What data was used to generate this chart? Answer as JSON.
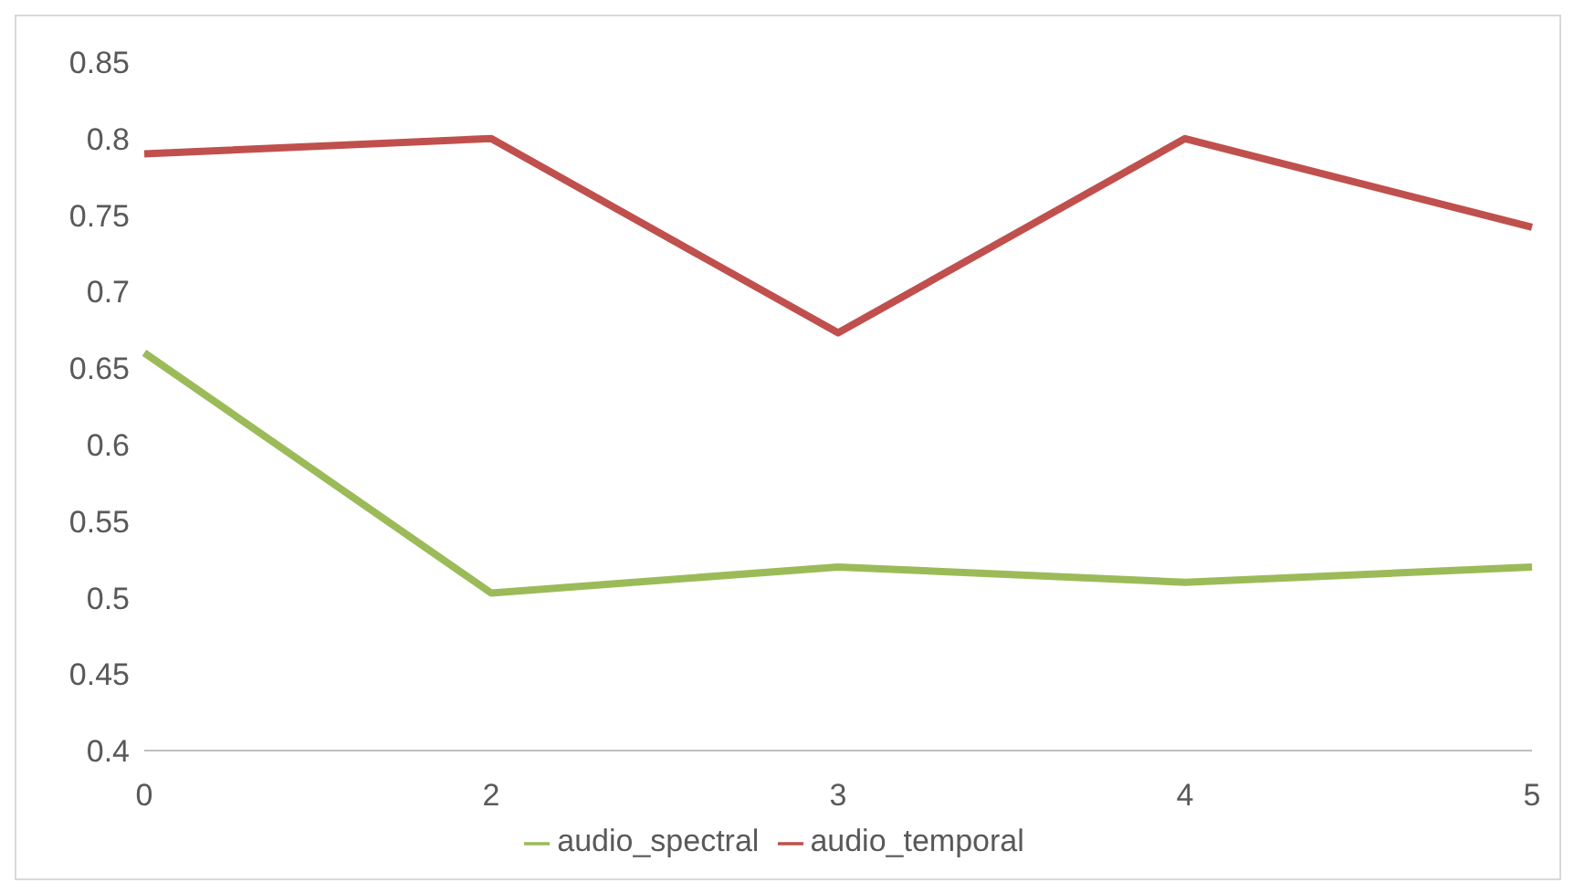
{
  "chart_data": {
    "type": "line",
    "categories": [
      "0",
      "2",
      "3",
      "4",
      "5"
    ],
    "series": [
      {
        "name": "audio_temporal",
        "color": "#c0504d",
        "values": [
          0.79,
          0.8,
          0.673,
          0.8,
          0.742
        ]
      },
      {
        "name": "audio_spectral",
        "color": "#9bbb59",
        "values": [
          0.66,
          0.503,
          0.52,
          0.51,
          0.52
        ]
      }
    ],
    "ylim": [
      0.4,
      0.85
    ],
    "yticks": [
      {
        "value": 0.4,
        "label": "0.4"
      },
      {
        "value": 0.45,
        "label": "0.45"
      },
      {
        "value": 0.5,
        "label": "0.5"
      },
      {
        "value": 0.55,
        "label": "0.55"
      },
      {
        "value": 0.6,
        "label": "0.6"
      },
      {
        "value": 0.65,
        "label": "0.65"
      },
      {
        "value": 0.7,
        "label": "0.7"
      },
      {
        "value": 0.75,
        "label": "0.75"
      },
      {
        "value": 0.8,
        "label": "0.8"
      },
      {
        "value": 0.85,
        "label": "0.85"
      }
    ],
    "grid": false,
    "legend": "bottom",
    "marker": "none",
    "line_style": "solid"
  }
}
